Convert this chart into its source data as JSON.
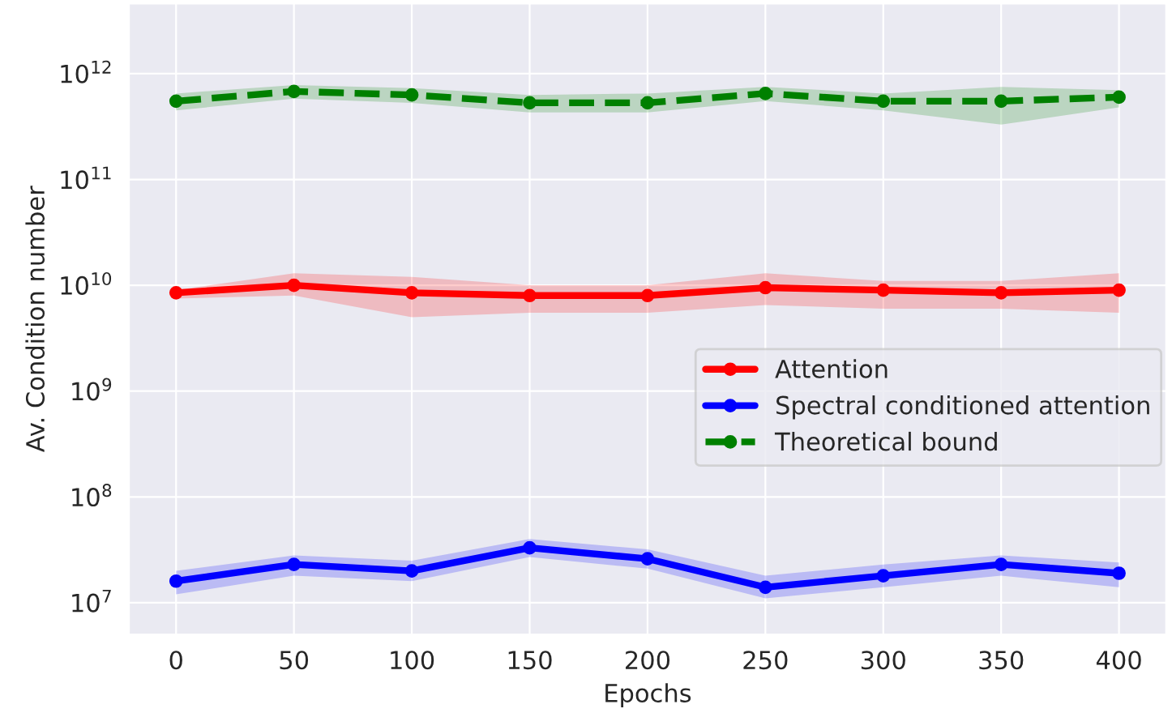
{
  "chart_data": {
    "type": "line",
    "xlabel": "Epochs",
    "ylabel": "Av. Condition number",
    "x": [
      0,
      50,
      100,
      150,
      200,
      250,
      300,
      350,
      400
    ],
    "xlim": [
      -20,
      420
    ],
    "xticks": [
      0,
      50,
      100,
      150,
      200,
      250,
      300,
      350,
      400
    ],
    "log": "y",
    "ylim": [
      5000000.0,
      4600000000000.0
    ],
    "yticks": [
      {
        "value": 10000000.0,
        "label": "10$^{7}$"
      },
      {
        "value": 100000000.0,
        "label": "10$^{8}$"
      },
      {
        "value": 1000000000.0,
        "label": "10$^{9}$"
      },
      {
        "value": 10000000000.0,
        "label": "10$^{10}$"
      },
      {
        "value": 100000000000.0,
        "label": "10$^{11}$"
      },
      {
        "value": 1000000000000.0,
        "label": "10$^{12}$"
      }
    ],
    "grid": true,
    "legend": "right",
    "marker": "circle",
    "series": [
      {
        "name": "Attention",
        "color": "#ff0000",
        "line_style": "solid",
        "values": [
          8500000000.0,
          10000000000.0,
          8500000000.0,
          8000000000.0,
          8000000000.0,
          9500000000.0,
          9000000000.0,
          8500000000.0,
          9000000000.0
        ],
        "lower": [
          7500000000.0,
          8000000000.0,
          5000000000.0,
          5500000000.0,
          5500000000.0,
          6500000000.0,
          6000000000.0,
          6000000000.0,
          5500000000.0
        ],
        "upper": [
          9000000000.0,
          13000000000.0,
          12000000000.0,
          10000000000.0,
          10000000000.0,
          13000000000.0,
          11000000000.0,
          11000000000.0,
          13000000000.0
        ]
      },
      {
        "name": "Spectral conditioned attention",
        "color": "#0000ff",
        "line_style": "solid",
        "values": [
          16000000.0,
          23000000.0,
          20000000.0,
          33000000.0,
          26000000.0,
          14000000.0,
          18000000.0,
          23000000.0,
          19000000.0
        ],
        "lower": [
          12000000.0,
          18000000.0,
          16000000.0,
          27000000.0,
          21000000.0,
          11000000.0,
          14000000.0,
          18000000.0,
          14000000.0
        ],
        "upper": [
          20000000.0,
          28000000.0,
          25000000.0,
          40000000.0,
          32000000.0,
          18000000.0,
          23000000.0,
          28000000.0,
          24000000.0
        ]
      },
      {
        "name": "Theoretical bound",
        "color": "#008000",
        "line_style": "dashed",
        "values": [
          550000000000.0,
          680000000000.0,
          630000000000.0,
          530000000000.0,
          530000000000.0,
          650000000000.0,
          550000000000.0,
          550000000000.0,
          600000000000.0
        ],
        "lower": [
          450000000000.0,
          580000000000.0,
          530000000000.0,
          430000000000.0,
          430000000000.0,
          550000000000.0,
          450000000000.0,
          330000000000.0,
          480000000000.0
        ],
        "upper": [
          650000000000.0,
          780000000000.0,
          730000000000.0,
          630000000000.0,
          650000000000.0,
          750000000000.0,
          650000000000.0,
          750000000000.0,
          700000000000.0
        ]
      }
    ]
  }
}
